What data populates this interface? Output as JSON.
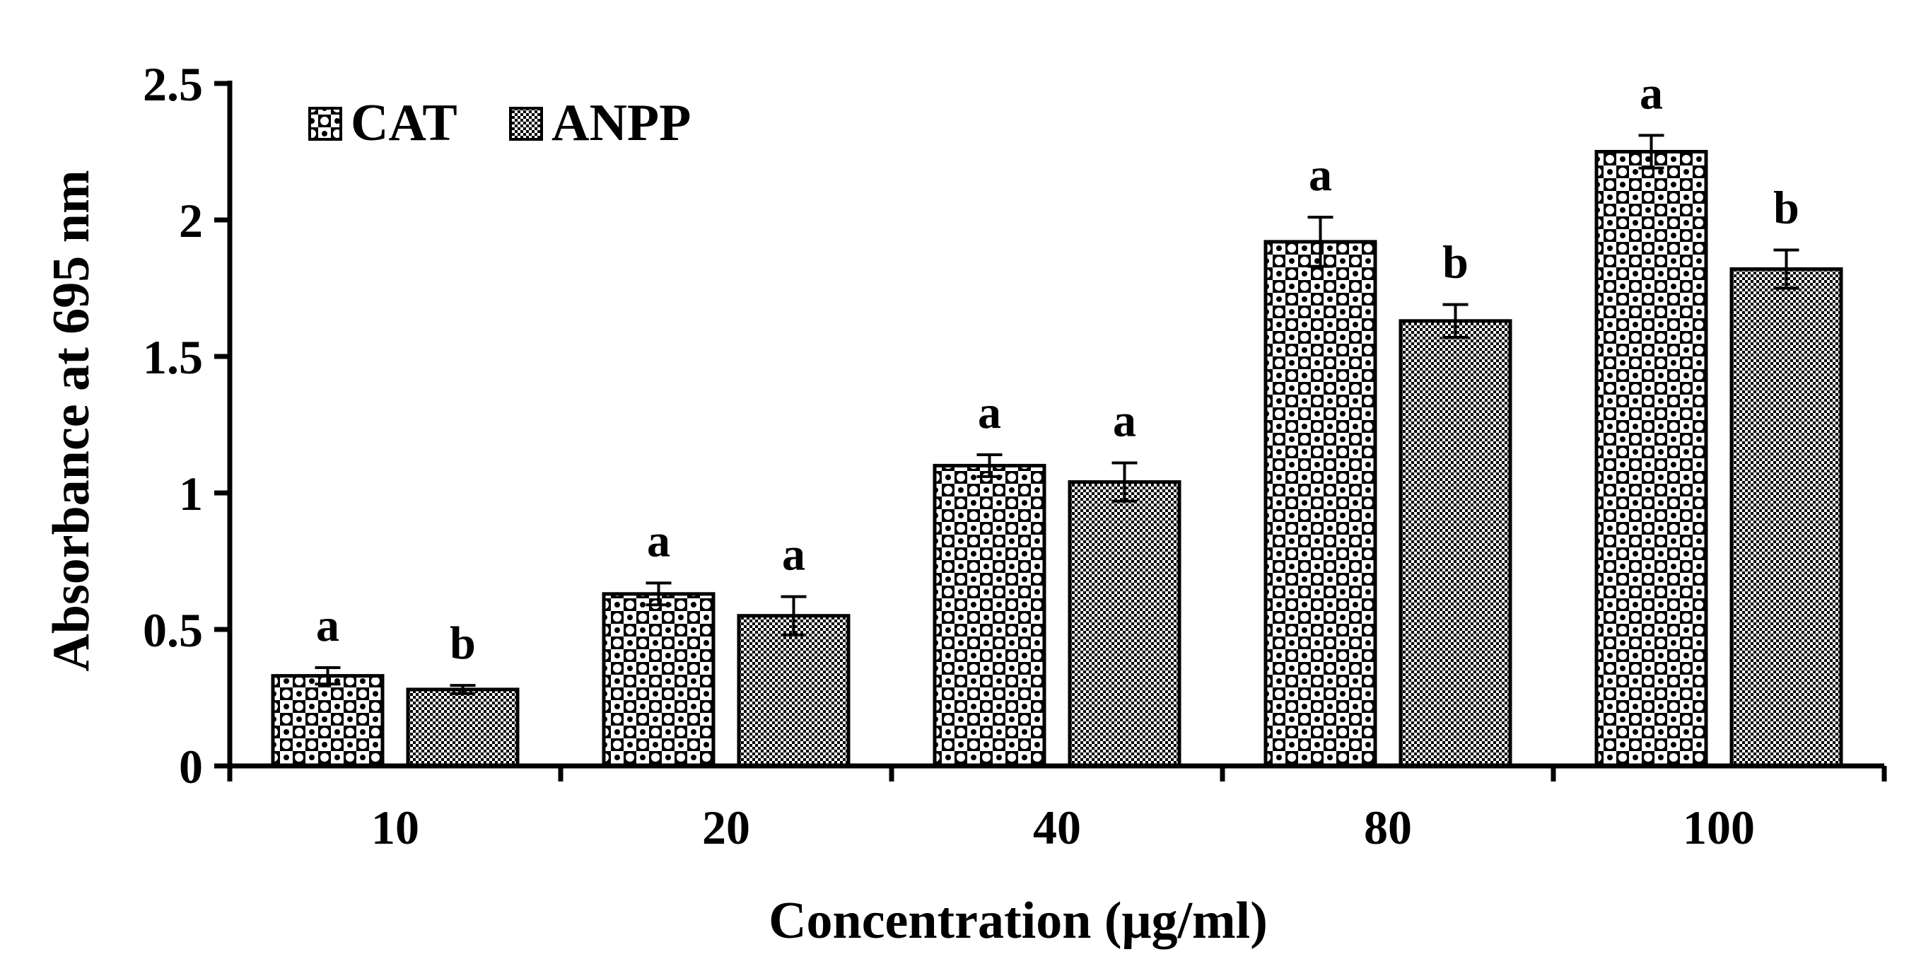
{
  "chart_data": {
    "type": "bar",
    "title": "",
    "xlabel": "Concentration (μg/ml)",
    "ylabel": "Absorbance at 695 nm",
    "categories": [
      "10",
      "20",
      "40",
      "80",
      "100"
    ],
    "ylim": [
      0,
      2.5
    ],
    "yticks": [
      0,
      0.5,
      1,
      1.5,
      2,
      2.5
    ],
    "ytick_labels": [
      "0",
      "0.5",
      "1",
      "1.5",
      "2",
      "2.5"
    ],
    "grid": false,
    "legend_position": "top-left",
    "series": [
      {
        "name": "CAT",
        "pattern": "checker-dots",
        "values": [
          0.33,
          0.63,
          1.1,
          1.92,
          2.25
        ],
        "errors": [
          0.03,
          0.04,
          0.04,
          0.09,
          0.06
        ],
        "significance": [
          "a",
          "a",
          "a",
          "a",
          "a"
        ]
      },
      {
        "name": "ANPP",
        "pattern": "fine-checker",
        "values": [
          0.28,
          0.55,
          1.04,
          1.63,
          1.82
        ],
        "errors": [
          0.015,
          0.07,
          0.07,
          0.06,
          0.07
        ],
        "significance": [
          "b",
          "a",
          "a",
          "b",
          "b"
        ]
      }
    ],
    "colors": {
      "ink": "#000000",
      "background": "#ffffff"
    }
  }
}
